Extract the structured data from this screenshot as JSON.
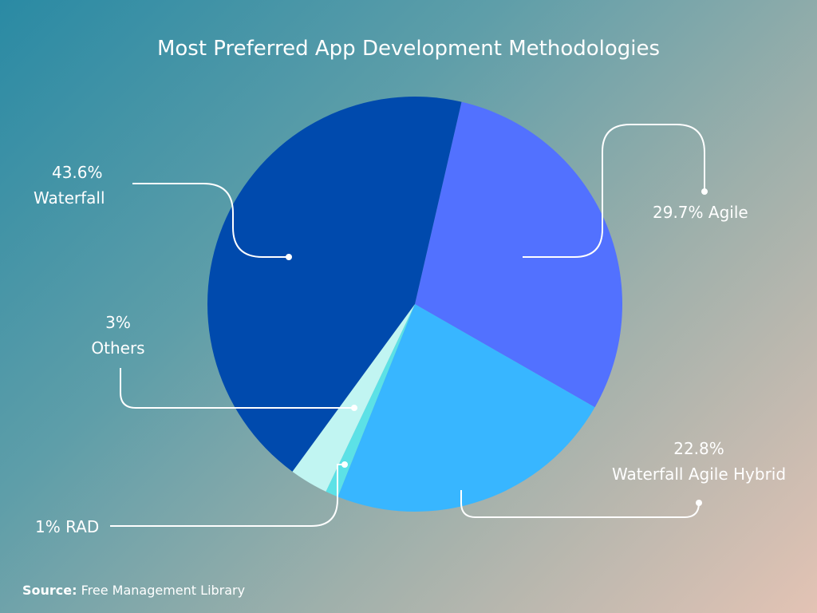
{
  "chart_data": {
    "type": "pie",
    "title": "Most Preferred App Development Methodologies",
    "start_angle_deg": 13,
    "slices": [
      {
        "label": "Agile",
        "value": 29.7,
        "display": "29.7% Agile",
        "color": "#5271ff"
      },
      {
        "label": "Waterfall Agile Hybrid",
        "value": 22.8,
        "display_pct": "22.8%",
        "display_name": "Waterfall Agile Hybrid",
        "color": "#38b6ff"
      },
      {
        "label": "RAD",
        "value": 1,
        "display": "1% RAD",
        "color": "#5ce1e6"
      },
      {
        "label": "Others",
        "value": 3,
        "display_pct": "3%",
        "display_name": "Others",
        "color": "#c1f5f2"
      },
      {
        "label": "Waterfall",
        "value": 43.6,
        "display_pct": "43.6%",
        "display_name": "Waterfall",
        "color": "#004aad"
      }
    ]
  },
  "source": {
    "label": "Source:",
    "text": "Free Management Library"
  }
}
